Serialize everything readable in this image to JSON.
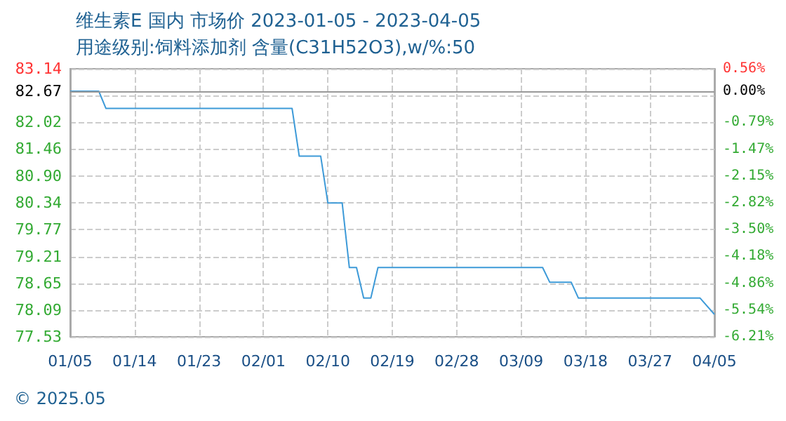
{
  "chart_data": {
    "type": "line",
    "title": "维生素E 国内 市场价 2023-01-05 - 2023-04-05",
    "subtitle": "用途级别:饲料添加剂 含量(C31H52O3),w/%:50",
    "annotations": [
      "© 2025.05"
    ],
    "x": [
      "--01-05",
      "--01-09",
      "--01-10",
      "--02-05",
      "--02-06",
      "--02-09",
      "--02-10",
      "--02-12",
      "--02-13",
      "--02-14",
      "--02-15",
      "--02-16",
      "--02-17",
      "--03-12",
      "--03-13",
      "--03-16",
      "--03-17",
      "--04-03",
      "--04-05"
    ],
    "series": [
      {
        "color": "#3d9ad8",
        "values": [
          82.67,
          82.67,
          82.31,
          82.31,
          81.31,
          81.31,
          80.33,
          80.33,
          78.98,
          78.98,
          78.34,
          78.34,
          78.98,
          78.98,
          78.67,
          78.67,
          78.34,
          78.34,
          78.0
        ]
      }
    ],
    "xlim": [
      "--01-05",
      "--04-05"
    ],
    "xticks": [
      {
        "value": "--01-05",
        "label": "01/05"
      },
      {
        "value": "--01-14",
        "label": "01/14"
      },
      {
        "value": "--01-23",
        "label": "01/23"
      },
      {
        "value": "--02-01",
        "label": "02/01"
      },
      {
        "value": "--02-10",
        "label": "02/10"
      },
      {
        "value": "--02-19",
        "label": "02/19"
      },
      {
        "value": "--02-28",
        "label": "02/28"
      },
      {
        "value": "--03-09",
        "label": "03/09"
      },
      {
        "value": "--03-18",
        "label": "03/18"
      },
      {
        "value": "--03-27",
        "label": "03/27"
      },
      {
        "value": "--04-05",
        "label": "04/05"
      }
    ],
    "ylim": [
      77.53,
      83.14
    ],
    "yticks": [
      77.53,
      78.09,
      78.65,
      79.21,
      79.77,
      80.34,
      {
        "value": 80.9,
        "label": "80.90"
      },
      81.46,
      82.02,
      {
        "value": 82.58,
        "label": null
      },
      82.67,
      83.14
    ],
    "y2lim": [
      -6.21,
      0.56
    ],
    "y2ticks": [
      {
        "value": -6.21,
        "label": "-6.21%"
      },
      {
        "value": -5.54,
        "label": "-5.54%"
      },
      {
        "value": -4.86,
        "label": "-4.86%"
      },
      {
        "value": -4.18,
        "label": "-4.18%"
      },
      {
        "value": -3.5,
        "label": "-3.50%"
      },
      {
        "value": -2.82,
        "label": "-2.82%"
      },
      {
        "value": -2.15,
        "label": "-2.15%"
      },
      {
        "value": -1.47,
        "label": "-1.47%"
      },
      {
        "value": -0.79,
        "label": "-0.79%"
      },
      {
        "value": 0,
        "label": "0.00%"
      },
      {
        "value": 0.56,
        "label": "0.56%"
      }
    ],
    "ref_lines": [
      {
        "axis": "y",
        "value": 82.67,
        "color": "#999999",
        "line_style": "solid"
      }
    ],
    "grid": true,
    "marker": "none",
    "line_style": "solid"
  }
}
